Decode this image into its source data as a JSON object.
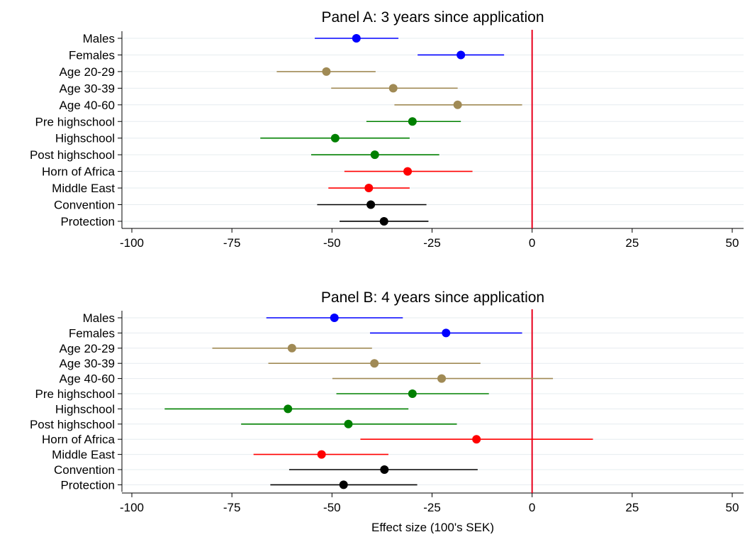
{
  "chart_data": [
    {
      "type": "scatter",
      "subtype": "coefficient-plot",
      "title": "Panel A: 3 years since application",
      "xlim": [
        -100,
        50
      ],
      "xticks": [
        -100,
        -75,
        -50,
        -25,
        0,
        25,
        50
      ],
      "xtick_labels": [
        "-100",
        "-75",
        "-50",
        "-25",
        "0",
        "25",
        "50"
      ],
      "reference_line_x": 0,
      "reference_line_color": "#e8001c",
      "grid": "horizontal",
      "categories": [
        "Males",
        "Females",
        "Age 20-29",
        "Age 30-39",
        "Age 40-60",
        "Pre highschool",
        "Highschool",
        "Post highschool",
        "Horn of Africa",
        "Middle East",
        "Convention",
        "Protection"
      ],
      "estimates": [
        -43.9,
        -17.8,
        -51.4,
        -34.7,
        -18.6,
        -29.9,
        -49.2,
        -39.3,
        -31.1,
        -40.8,
        -40.3,
        -37.0
      ],
      "ci_low": [
        -54.3,
        -28.6,
        -63.8,
        -50.2,
        -34.4,
        -41.4,
        -67.9,
        -55.2,
        -46.9,
        -50.9,
        -53.7,
        -48.1
      ],
      "ci_high": [
        -33.4,
        -7.0,
        -39.1,
        -18.6,
        -2.5,
        -17.8,
        -30.6,
        -23.2,
        -14.9,
        -30.6,
        -26.4,
        -25.9
      ],
      "colors": [
        "#0000ff",
        "#0000ff",
        "#a08a55",
        "#a08a55",
        "#a08a55",
        "#008000",
        "#008000",
        "#008000",
        "#ff0000",
        "#ff0000",
        "#000000",
        "#000000"
      ]
    },
    {
      "type": "scatter",
      "subtype": "coefficient-plot",
      "title": "Panel B: 4 years since application",
      "xlabel": "Effect size (100's SEK)",
      "xlim": [
        -100,
        50
      ],
      "xticks": [
        -100,
        -75,
        -50,
        -25,
        0,
        25,
        50
      ],
      "xtick_labels": [
        "-100",
        "-75",
        "-50",
        "-25",
        "0",
        "25",
        "50"
      ],
      "reference_line_x": 0,
      "reference_line_color": "#e8001c",
      "grid": "horizontal",
      "categories": [
        "Males",
        "Females",
        "Age 20-29",
        "Age 30-39",
        "Age 40-60",
        "Pre highschool",
        "Highschool",
        "Post highschool",
        "Horn of Africa",
        "Middle East",
        "Convention",
        "Protection"
      ],
      "estimates": [
        -49.4,
        -21.5,
        -60.0,
        -39.4,
        -22.6,
        -29.9,
        -61.0,
        -45.9,
        -13.9,
        -52.6,
        -36.9,
        -47.1
      ],
      "ci_low": [
        -66.4,
        -40.5,
        -79.9,
        -65.9,
        -49.9,
        -48.9,
        -91.8,
        -72.7,
        -42.9,
        -69.6,
        -60.7,
        -65.4
      ],
      "ci_high": [
        -32.3,
        -2.5,
        -40.0,
        -12.9,
        5.2,
        -10.8,
        -30.9,
        -18.8,
        15.2,
        -35.9,
        -13.6,
        -28.7
      ],
      "colors": [
        "#0000ff",
        "#0000ff",
        "#a08a55",
        "#a08a55",
        "#a08a55",
        "#008000",
        "#008000",
        "#008000",
        "#ff0000",
        "#ff0000",
        "#000000",
        "#000000"
      ]
    }
  ]
}
